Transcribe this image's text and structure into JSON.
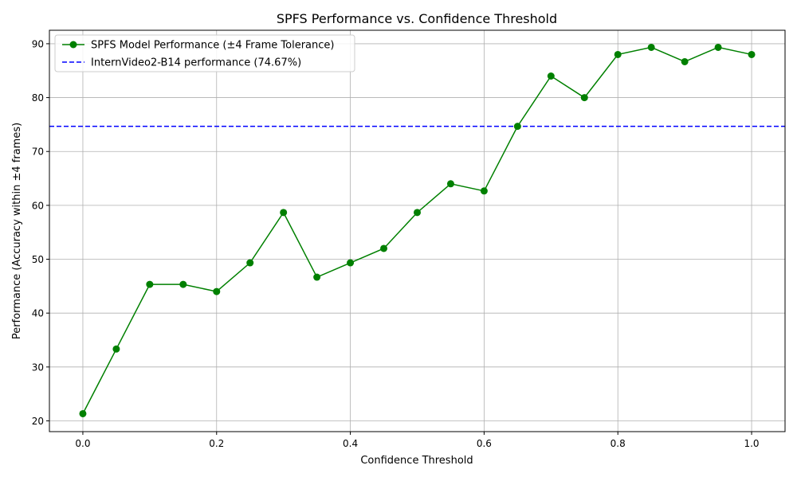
{
  "chart_data": {
    "type": "line",
    "title": "SPFS Performance vs. Confidence Threshold",
    "xlabel": "Confidence Threshold",
    "ylabel": "Performance (Accuracy within ±4 frames)",
    "xlim": [
      -0.05,
      1.05
    ],
    "ylim": [
      18.0,
      92.5
    ],
    "x_ticks": [
      0.0,
      0.2,
      0.4,
      0.6,
      0.8,
      1.0
    ],
    "x_tick_labels": [
      "0.0",
      "0.2",
      "0.4",
      "0.6",
      "0.8",
      "1.0"
    ],
    "y_ticks": [
      20,
      30,
      40,
      50,
      60,
      70,
      80,
      90
    ],
    "y_tick_labels": [
      "20",
      "30",
      "40",
      "50",
      "60",
      "70",
      "80",
      "90"
    ],
    "grid": true,
    "legend_position": "top-left",
    "series": [
      {
        "name": "SPFS Model Performance (±4 Frame Tolerance)",
        "color": "#008000",
        "style": "solid",
        "marker": "circle",
        "x": [
          0.0,
          0.05,
          0.1,
          0.15,
          0.2,
          0.25,
          0.3,
          0.35,
          0.4,
          0.45,
          0.5,
          0.55,
          0.6,
          0.65,
          0.7,
          0.75,
          0.8,
          0.85,
          0.9,
          0.95,
          1.0
        ],
        "y": [
          21.33,
          33.33,
          45.33,
          45.33,
          44.0,
          49.33,
          58.67,
          46.67,
          49.33,
          52.0,
          58.67,
          64.0,
          62.67,
          74.67,
          84.0,
          80.0,
          88.0,
          89.33,
          86.67,
          89.33,
          88.0
        ]
      }
    ],
    "reference_lines": [
      {
        "name": "InternVideo2-B14 performance (74.67%)",
        "orientation": "horizontal",
        "y": 74.67,
        "color": "#0000ff",
        "style": "dashed"
      }
    ]
  }
}
